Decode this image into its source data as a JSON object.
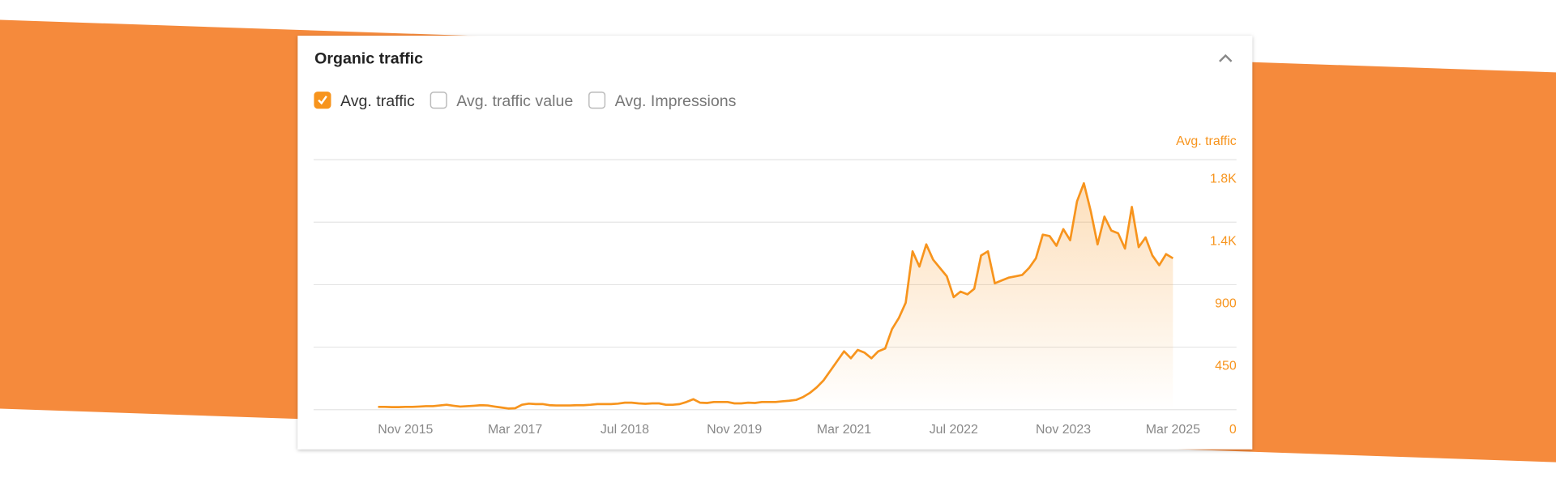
{
  "panel": {
    "title": "Organic traffic",
    "options": [
      {
        "label": "Avg. traffic",
        "checked": true
      },
      {
        "label": "Avg. traffic value",
        "checked": false
      },
      {
        "label": "Avg. Impressions",
        "checked": false
      }
    ]
  },
  "chart_data": {
    "type": "area",
    "y_label": "Avg. traffic",
    "color": "#f7941d",
    "categories": [
      null,
      null,
      null,
      null,
      "Nov 2015",
      null,
      null,
      null,
      null,
      null,
      null,
      null,
      null,
      null,
      null,
      null,
      null,
      null,
      null,
      null,
      "Mar 2017",
      null,
      null,
      null,
      null,
      null,
      null,
      null,
      null,
      null,
      null,
      null,
      null,
      null,
      null,
      null,
      "Jul 2018",
      null,
      null,
      null,
      null,
      null,
      null,
      null,
      null,
      null,
      null,
      null,
      null,
      null,
      null,
      null,
      "Nov 2019",
      null,
      null,
      null,
      null,
      null,
      null,
      null,
      null,
      null,
      null,
      null,
      null,
      null,
      null,
      null,
      "Mar 2021",
      null,
      null,
      null,
      null,
      null,
      null,
      null,
      null,
      null,
      null,
      null,
      null,
      null,
      null,
      null,
      "Jul 2022",
      null,
      null,
      null,
      null,
      null,
      null,
      null,
      null,
      null,
      null,
      null,
      null,
      null,
      null,
      null,
      "Nov 2023",
      null,
      null,
      null,
      null,
      null,
      null,
      null,
      null,
      null,
      null,
      null,
      null,
      null,
      null,
      null,
      "Mar 2025"
    ],
    "values": [
      20,
      20,
      18,
      18,
      20,
      20,
      22,
      25,
      25,
      30,
      35,
      28,
      22,
      25,
      28,
      32,
      30,
      22,
      15,
      8,
      10,
      35,
      43,
      40,
      40,
      32,
      30,
      30,
      30,
      32,
      32,
      35,
      40,
      40,
      40,
      43,
      50,
      50,
      45,
      42,
      45,
      45,
      35,
      35,
      40,
      55,
      75,
      50,
      48,
      55,
      55,
      55,
      45,
      45,
      50,
      48,
      55,
      55,
      55,
      60,
      64,
      70,
      90,
      120,
      160,
      210,
      280,
      350,
      420,
      370,
      430,
      410,
      370,
      420,
      440,
      580,
      660,
      770,
      1140,
      1030,
      1190,
      1080,
      1020,
      960,
      810,
      850,
      830,
      870,
      1110,
      1140,
      910,
      930,
      950,
      960,
      970,
      1020,
      1090,
      1260,
      1250,
      1180,
      1300,
      1220,
      1500,
      1630,
      1430,
      1190,
      1390,
      1290,
      1270,
      1160,
      1460,
      1170,
      1240,
      1110,
      1040,
      1120,
      1090
    ],
    "ylim": [
      0,
      1800
    ],
    "yticks": [
      0,
      450,
      900,
      {
        "value": 1350,
        "label": "1.4K"
      },
      {
        "value": 1800,
        "label": "1.8K"
      }
    ],
    "grid": true
  }
}
